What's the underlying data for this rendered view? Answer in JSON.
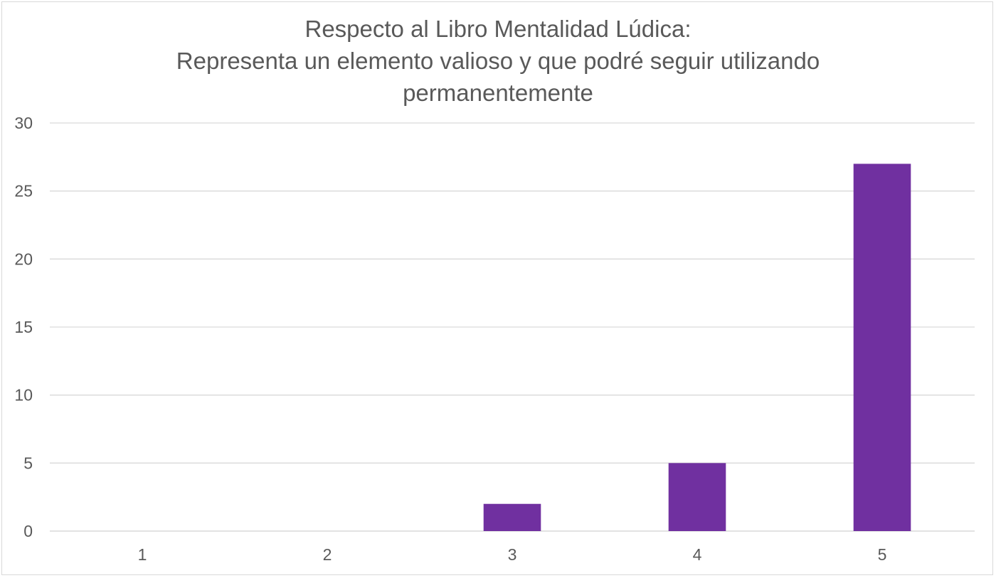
{
  "chart_data": {
    "type": "bar",
    "title_lines": [
      "Respecto al Libro Mentalidad Lúdica:",
      "Representa un elemento valioso y que podré seguir utilizando",
      "permanentemente"
    ],
    "categories": [
      "1",
      "2",
      "3",
      "4",
      "5"
    ],
    "values": [
      0,
      0,
      2,
      5,
      27
    ],
    "ylim": [
      0,
      30
    ],
    "yticks": [
      0,
      5,
      10,
      15,
      20,
      25,
      30
    ],
    "xlabel": "",
    "ylabel": "",
    "grid": true,
    "legend": "none",
    "bar_color": "#7030a0",
    "grid_color": "#d9d9d9",
    "text_color": "#595959"
  }
}
